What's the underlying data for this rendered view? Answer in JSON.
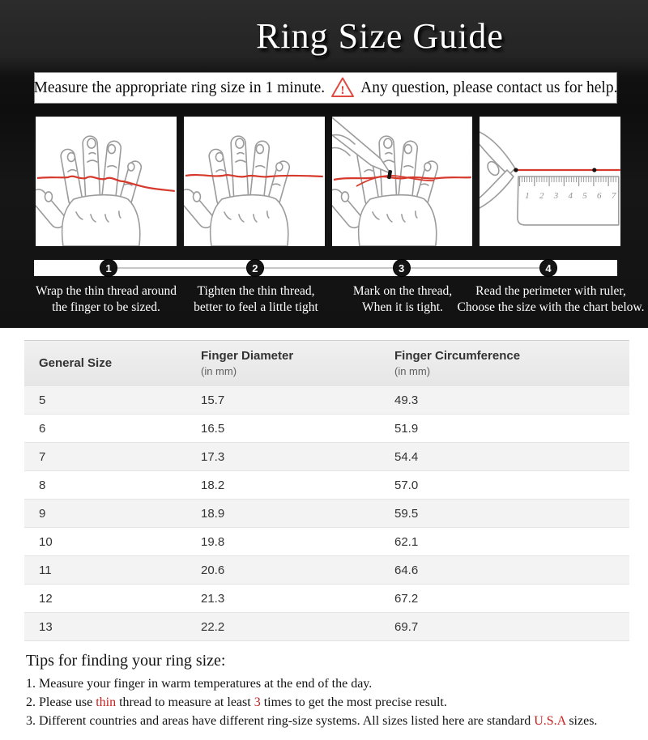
{
  "header": {
    "title": "Ring Size Guide"
  },
  "banner": {
    "text_before_icon": "Measure the appropriate ring size in 1 minute.",
    "warning_mark": "!",
    "text_after_icon": "Any question, please contact us for help."
  },
  "steps": [
    {
      "num": "1",
      "line1": "Wrap the thin thread around",
      "line2": "the finger to be sized."
    },
    {
      "num": "2",
      "line1": "Tighten the thin thread,",
      "line2": "better to feel a little tight"
    },
    {
      "num": "3",
      "line1": "Mark on the thread,",
      "line2": "When it is tight."
    },
    {
      "num": "4",
      "line1": "Read the perimeter with ruler,",
      "line2": "Choose the size with the chart below."
    }
  ],
  "illustrations": {
    "step1": "hand-with-loose-thread",
    "step2": "hand-with-tightened-thread",
    "step3": "hand-marking-thread-with-pen",
    "step4": "thread-measured-with-ruler",
    "ruler_numbers": [
      "1",
      "2",
      "3",
      "4",
      "5",
      "6",
      "7"
    ]
  },
  "size_table": {
    "columns": [
      {
        "label": "General Size",
        "sub": ""
      },
      {
        "label": "Finger Diameter",
        "sub": "(in mm)"
      },
      {
        "label": "Finger Circumference",
        "sub": "(in mm)"
      }
    ],
    "rows": [
      [
        "5",
        "15.7",
        "49.3"
      ],
      [
        "6",
        "16.5",
        "51.9"
      ],
      [
        "7",
        "17.3",
        "54.4"
      ],
      [
        "8",
        "18.2",
        "57.0"
      ],
      [
        "9",
        "18.9",
        "59.5"
      ],
      [
        "10",
        "19.8",
        "62.1"
      ],
      [
        "11",
        "20.6",
        "64.6"
      ],
      [
        "12",
        "21.3",
        "67.2"
      ],
      [
        "13",
        "22.2",
        "69.7"
      ]
    ]
  },
  "tips": {
    "title": "Tips for finding your ring size:",
    "items": [
      [
        {
          "t": "1. Measure your finger in warm temperatures at the end of the day."
        }
      ],
      [
        {
          "t": "2. Please use "
        },
        {
          "t": "thin",
          "red": true
        },
        {
          "t": " thread to measure at least "
        },
        {
          "t": "3",
          "red": true
        },
        {
          "t": " times to get the most precise result."
        }
      ],
      [
        {
          "t": "3. Different countries and areas have different ring-size systems. All sizes listed here are standard "
        },
        {
          "t": "U.S.A",
          "red": true
        },
        {
          "t": " sizes."
        }
      ]
    ]
  },
  "colors": {
    "header_bg": "#1d1d1d",
    "thread_red": "#d63a2c",
    "accent_red": "#c42120",
    "table_header_bg": "#e9e9e9",
    "alt_row_bg": "#f3f3f3",
    "step_circle_bg": "#141414"
  }
}
